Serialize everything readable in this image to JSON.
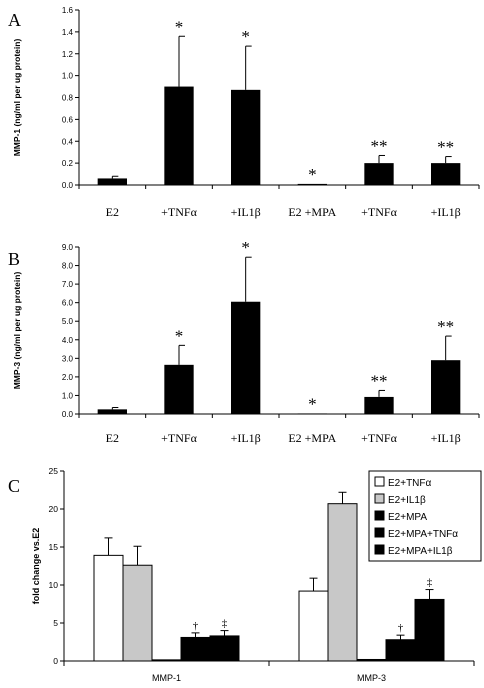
{
  "chart_data": [
    {
      "type": "bar",
      "panel_label": "A",
      "ylabel": "MMP-1 (ng/ml per ug protein)",
      "categories": [
        "E2",
        "+TNFα",
        "+IL1β",
        "E2 +MPA",
        "+TNFα",
        "+IL1β"
      ],
      "values": [
        0.06,
        0.9,
        0.87,
        0.01,
        0.2,
        0.2
      ],
      "errors": [
        0.02,
        0.46,
        0.4,
        0.0,
        0.07,
        0.06
      ],
      "annotations": [
        "",
        "*",
        "*",
        "*",
        "**",
        "**"
      ],
      "ylim": [
        0,
        1.6
      ],
      "yticks": [
        "0.0",
        "0.2",
        "0.4",
        "0.6",
        "0.8",
        "1.0",
        "1.2",
        "1.4",
        "1.6"
      ],
      "bar_color": "#000000"
    },
    {
      "type": "bar",
      "panel_label": "B",
      "ylabel": "MMP-3 (ng/ml per ug protein)",
      "categories": [
        "E2",
        "+TNFα",
        "+IL1β",
        "E2 +MPA",
        "+TNFα",
        "+IL1β"
      ],
      "values": [
        0.25,
        2.65,
        6.05,
        0.03,
        0.92,
        2.9
      ],
      "errors": [
        0.1,
        1.05,
        2.4,
        0.0,
        0.35,
        1.3
      ],
      "annotations": [
        "",
        "*",
        "*",
        "*",
        "**",
        "**"
      ],
      "ylim": [
        0,
        9.0
      ],
      "yticks": [
        "0.0",
        "1.0",
        "2.0",
        "3.0",
        "4.0",
        "5.0",
        "6.0",
        "7.0",
        "8.0",
        "9.0"
      ],
      "bar_color": "#000000"
    },
    {
      "type": "bar",
      "panel_label": "C",
      "ylabel": "fold change vs.E2",
      "categories": [
        "MMP-1",
        "MMP-3"
      ],
      "ylim": [
        0,
        25
      ],
      "yticks": [
        "0",
        "5",
        "10",
        "15",
        "20",
        "25"
      ],
      "legend_position": "top-right",
      "series": [
        {
          "name": "E2+TNFα",
          "values": [
            13.9,
            9.2
          ],
          "errors": [
            2.3,
            1.7
          ],
          "annotations": [
            "",
            ""
          ],
          "color": "#ffffff"
        },
        {
          "name": "E2+IL1β",
          "values": [
            12.6,
            20.7
          ],
          "errors": [
            2.5,
            1.5
          ],
          "annotations": [
            "",
            ""
          ],
          "color": "#c8c8c8"
        },
        {
          "name": "E2+MPA",
          "values": [
            0.15,
            0.2
          ],
          "errors": [
            0.0,
            0.0
          ],
          "annotations": [
            "",
            ""
          ],
          "color": "#000000"
        },
        {
          "name": "E2+MPA+TNFα",
          "values": [
            3.1,
            2.8
          ],
          "errors": [
            0.6,
            0.6
          ],
          "annotations": [
            "†",
            "†"
          ],
          "color": "#000000"
        },
        {
          "name": "E2+MPA+IL1β",
          "values": [
            3.3,
            8.1
          ],
          "errors": [
            0.7,
            1.3
          ],
          "annotations": [
            "‡",
            "‡"
          ],
          "color": "#000000"
        }
      ]
    }
  ]
}
